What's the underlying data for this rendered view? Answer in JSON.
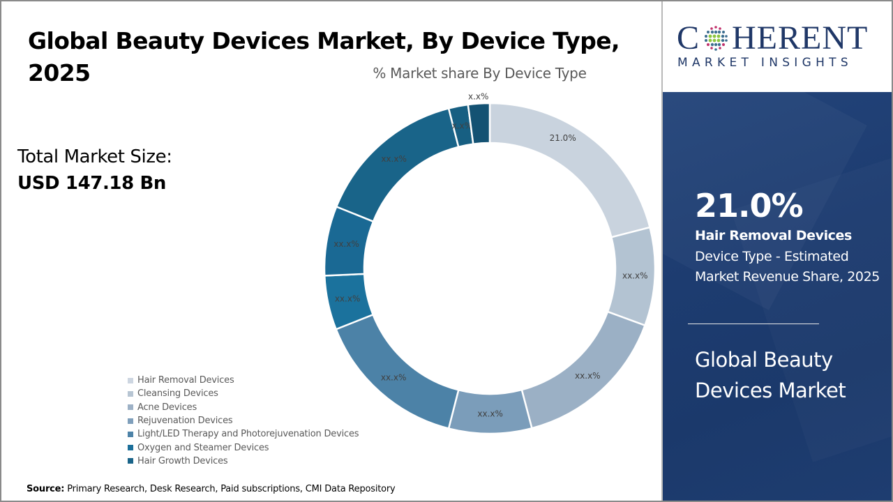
{
  "header": {
    "title": "Global Beauty Devices Market, By Device Type, 2025"
  },
  "market_size": {
    "label": "Total Market Size:",
    "value": "USD 147.18 Bn"
  },
  "legend": {
    "items": [
      {
        "label": "Hair Removal Devices",
        "color": "#cdd6e1"
      },
      {
        "label": "Cleansing Devices",
        "color": "#b7c5d3"
      },
      {
        "label": "Acne Devices",
        "color": "#9db1c6"
      },
      {
        "label": "Rejuvenation Devices",
        "color": "#7f9fbb"
      },
      {
        "label": "Light/LED Therapy and Photorejuvenation Devices",
        "color": "#4e83a8"
      },
      {
        "label": "Oxygen and Steamer Devices",
        "color": "#1c6f9a"
      },
      {
        "label": "Hair Growth Devices",
        "color": "#1a6489"
      }
    ]
  },
  "source": {
    "prefix": "Source:",
    "text": " Primary Research, Desk Research, Paid subscriptions, CMI Data Repository"
  },
  "logo": {
    "word_left": "C",
    "word_right": "HERENT",
    "subtitle": "MARKET INSIGHTS",
    "brand_color": "#1f3767"
  },
  "highlight": {
    "stat": "21.0%",
    "segment": "Hair Removal Devices",
    "description": "Device Type - Estimated Market Revenue Share, 2025",
    "market": "Global Beauty Devices Market"
  },
  "chart_data": {
    "type": "pie",
    "variant": "donut",
    "title": "% Market share By Device Type",
    "start_angle_deg": 0,
    "direction": "clockwise",
    "slices": [
      {
        "name": "Hair Removal Devices",
        "value": 21.0,
        "label": "21.0%",
        "color": "#c9d3de"
      },
      {
        "name": "Cleansing Devices",
        "value": 9.6,
        "label": "xx.x%",
        "color": "#b3c3d2"
      },
      {
        "name": "Acne Devices",
        "value": 15.3,
        "label": "xx.x%",
        "color": "#9bb0c5"
      },
      {
        "name": "Rejuvenation Devices",
        "value": 8.1,
        "label": "xx.x%",
        "color": "#7b9dba"
      },
      {
        "name": "Light/LED Therapy and Photorejuvenation Devices",
        "value": 15.0,
        "label": "xx.x%",
        "color": "#4c82a7"
      },
      {
        "name": "Oxygen and Steamer Devices",
        "value": 5.3,
        "label": "xx.x%",
        "color": "#1b729d"
      },
      {
        "name": "Hair Growth Devices",
        "value": 6.8,
        "label": "xx.x%",
        "color": "#1a6994"
      },
      {
        "name": "Other (unlabeled)",
        "value": 14.9,
        "label": "xx.x%",
        "color": "#196489"
      },
      {
        "name": "Other (unlabeled)",
        "value": 1.9,
        "label": "x.x%",
        "color": "#175f82"
      },
      {
        "name": "Other (unlabeled)",
        "value": 2.1,
        "label": "x.x%",
        "color": "#145273"
      }
    ],
    "legend_position": "bottom-left"
  }
}
